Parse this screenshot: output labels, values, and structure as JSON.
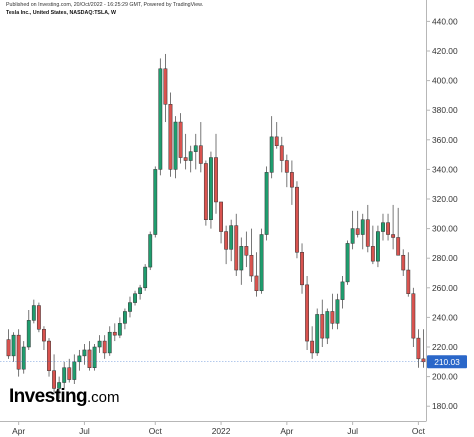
{
  "header": {
    "published": "Published on Investing.com, 20/Oct/2022 - 16:25:29 GMT, Powered by TradingView.",
    "subtitle": "Tesla Inc., United States, NASDAQ:TSLA, W"
  },
  "logo": {
    "main": "Investing",
    "suffix": ".com"
  },
  "colors": {
    "up": "#1f9d6e",
    "down": "#d9534f",
    "axis": "#b7b7b7",
    "price_line": "#2a67c9",
    "price_tag": "#2a67c9"
  },
  "chart_data": {
    "type": "candlestick",
    "title": "",
    "xlabel": "",
    "ylabel": "",
    "y_ticks": [
      "180.00",
      "200.00",
      "220.00",
      "240.00",
      "260.00",
      "280.00",
      "300.00",
      "320.00",
      "340.00",
      "360.00",
      "380.00",
      "400.00",
      "420.00",
      "440.00"
    ],
    "ylim": [
      170,
      445
    ],
    "x_ticks": [
      {
        "label": "Apr",
        "index": 2
      },
      {
        "label": "Jul",
        "index": 15
      },
      {
        "label": "Oct",
        "index": 29
      },
      {
        "label": "2022",
        "index": 42
      },
      {
        "label": "Apr",
        "index": 55
      },
      {
        "label": "Jul",
        "index": 68
      },
      {
        "label": "Oct",
        "index": 81
      }
    ],
    "last_price": 210.03,
    "last_price_label": "210.03",
    "candles": [
      [
        225,
        232,
        212,
        214
      ],
      [
        214,
        230,
        210,
        228
      ],
      [
        228,
        232,
        200,
        205
      ],
      [
        205,
        224,
        202,
        220
      ],
      [
        220,
        245,
        218,
        238
      ],
      [
        238,
        252,
        236,
        248
      ],
      [
        248,
        250,
        230,
        232
      ],
      [
        232,
        234,
        218,
        224
      ],
      [
        224,
        226,
        200,
        204
      ],
      [
        204,
        215,
        188,
        192
      ],
      [
        192,
        200,
        185,
        196
      ],
      [
        196,
        210,
        192,
        206
      ],
      [
        206,
        212,
        196,
        198
      ],
      [
        198,
        215,
        195,
        210
      ],
      [
        210,
        218,
        204,
        214
      ],
      [
        214,
        222,
        208,
        218
      ],
      [
        218,
        224,
        204,
        206
      ],
      [
        206,
        222,
        204,
        220
      ],
      [
        220,
        228,
        216,
        224
      ],
      [
        224,
        228,
        212,
        216
      ],
      [
        216,
        234,
        214,
        230
      ],
      [
        230,
        236,
        224,
        228
      ],
      [
        228,
        240,
        226,
        236
      ],
      [
        236,
        246,
        232,
        244
      ],
      [
        244,
        254,
        240,
        250
      ],
      [
        250,
        258,
        248,
        256
      ],
      [
        256,
        262,
        252,
        260
      ],
      [
        260,
        276,
        258,
        274
      ],
      [
        274,
        298,
        272,
        296
      ],
      [
        296,
        342,
        294,
        340
      ],
      [
        340,
        415,
        336,
        408
      ],
      [
        408,
        418,
        372,
        384
      ],
      [
        384,
        392,
        335,
        340
      ],
      [
        340,
        376,
        334,
        372
      ],
      [
        372,
        378,
        344,
        348
      ],
      [
        348,
        364,
        340,
        346
      ],
      [
        346,
        356,
        338,
        352
      ],
      [
        352,
        364,
        340,
        356
      ],
      [
        356,
        372,
        338,
        344
      ],
      [
        344,
        346,
        302,
        306
      ],
      [
        306,
        352,
        300,
        348
      ],
      [
        348,
        364,
        310,
        318
      ],
      [
        318,
        318,
        290,
        298
      ],
      [
        298,
        302,
        276,
        286
      ],
      [
        286,
        306,
        278,
        302
      ],
      [
        302,
        310,
        268,
        272
      ],
      [
        272,
        294,
        262,
        288
      ],
      [
        288,
        298,
        274,
        282
      ],
      [
        282,
        300,
        264,
        268
      ],
      [
        268,
        284,
        254,
        258
      ],
      [
        258,
        300,
        256,
        296
      ],
      [
        296,
        342,
        292,
        338
      ],
      [
        338,
        376,
        334,
        362
      ],
      [
        362,
        372,
        354,
        356
      ],
      [
        356,
        362,
        338,
        346
      ],
      [
        346,
        350,
        328,
        338
      ],
      [
        338,
        346,
        316,
        328
      ],
      [
        328,
        332,
        280,
        284
      ],
      [
        284,
        290,
        256,
        262
      ],
      [
        262,
        268,
        218,
        224
      ],
      [
        224,
        234,
        212,
        216
      ],
      [
        216,
        246,
        214,
        242
      ],
      [
        242,
        252,
        220,
        226
      ],
      [
        226,
        246,
        222,
        244
      ],
      [
        244,
        256,
        232,
        236
      ],
      [
        236,
        256,
        232,
        252
      ],
      [
        252,
        268,
        246,
        264
      ],
      [
        264,
        292,
        262,
        290
      ],
      [
        290,
        312,
        286,
        300
      ],
      [
        300,
        312,
        294,
        296
      ],
      [
        296,
        310,
        286,
        306
      ],
      [
        306,
        316,
        284,
        288
      ],
      [
        288,
        302,
        276,
        278
      ],
      [
        278,
        302,
        274,
        298
      ],
      [
        298,
        310,
        292,
        304
      ],
      [
        304,
        310,
        292,
        296
      ],
      [
        296,
        316,
        286,
        294
      ],
      [
        294,
        314,
        282,
        282
      ],
      [
        282,
        286,
        268,
        272
      ],
      [
        272,
        284,
        254,
        256
      ],
      [
        256,
        260,
        220,
        226
      ],
      [
        226,
        232,
        206,
        212
      ],
      [
        212,
        232,
        206,
        210
      ]
    ]
  }
}
